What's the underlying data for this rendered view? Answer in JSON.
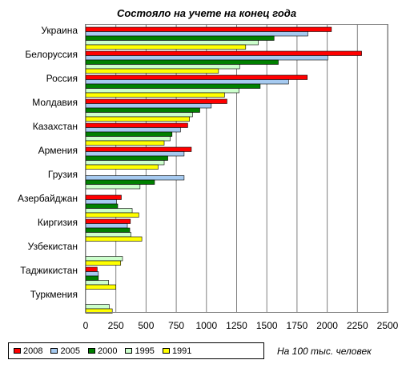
{
  "chart_data": {
    "type": "bar",
    "orientation": "horizontal",
    "title": "Состояло на учете на конец года",
    "unit_note": "На 100 тыс. человек",
    "categories": [
      "Украина",
      "Белоруссия",
      "Россия",
      "Молдавия",
      "Казахстан",
      "Армения",
      "Грузия",
      "Азербайджан",
      "Киргизия",
      "Узбекистан",
      "Таджикистан",
      "Туркмения"
    ],
    "xlim": [
      0,
      2500
    ],
    "xticks": [
      "0",
      "250",
      "500",
      "750",
      "1000",
      "1250",
      "1500",
      "1750",
      "2000",
      "2250",
      "2500"
    ],
    "grid": true,
    "legend_position": "bottom-left",
    "series": [
      {
        "name": "2008",
        "color": "#ff0000",
        "values": [
          2035,
          2285,
          1835,
          1170,
          845,
          875,
          null,
          295,
          370,
          null,
          95,
          null
        ]
      },
      {
        "name": "2005",
        "color": "#a6caf0",
        "values": [
          1840,
          2005,
          1680,
          1040,
          785,
          815,
          815,
          255,
          345,
          null,
          105,
          null
        ]
      },
      {
        "name": "2000",
        "color": "#008000",
        "values": [
          1560,
          1595,
          1445,
          945,
          715,
          680,
          570,
          265,
          365,
          null,
          105,
          null
        ]
      },
      {
        "name": "1995",
        "color": "#ccffcc",
        "values": [
          1430,
          1275,
          1270,
          885,
          700,
          650,
          450,
          385,
          375,
          305,
          190,
          195
        ]
      },
      {
        "name": "1991",
        "color": "#ffff00",
        "values": [
          1325,
          1100,
          1150,
          860,
          650,
          600,
          null,
          440,
          465,
          290,
          250,
          220
        ]
      }
    ]
  }
}
